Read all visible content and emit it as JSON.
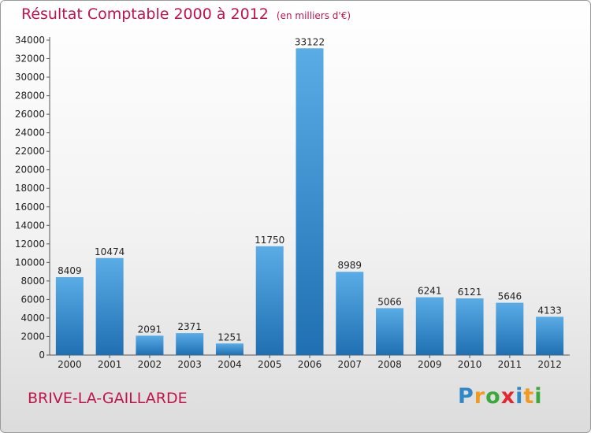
{
  "title": "Résultat Comptable 2000 à 2012",
  "unit": "(en milliers d'€)",
  "city": "BRIVE-LA-GAILLARDE",
  "logo": {
    "letters": [
      "P",
      "r",
      "o",
      "x",
      "i",
      "t",
      "i"
    ],
    "colors": [
      "#2e88c8",
      "#f29a1f",
      "#3aa83a",
      "#e3262f",
      "#2e88c8",
      "#f29a1f",
      "#3aa83a"
    ]
  },
  "colors": {
    "bar_top": "#5aace6",
    "bar_bottom": "#1f6fb2",
    "title": "#c0144c"
  },
  "chart_data": {
    "type": "bar",
    "title": "Résultat Comptable 2000 à 2012",
    "ylabel": "(en milliers d'€)",
    "xlabel": "",
    "categories": [
      "2000",
      "2001",
      "2002",
      "2003",
      "2004",
      "2005",
      "2006",
      "2007",
      "2008",
      "2009",
      "2010",
      "2011",
      "2012"
    ],
    "values": [
      8409,
      10474,
      2091,
      2371,
      1251,
      11750,
      33122,
      8989,
      5066,
      6241,
      6121,
      5646,
      4133
    ],
    "ylim": [
      0,
      34000
    ],
    "yticks": [
      0,
      2000,
      4000,
      6000,
      8000,
      10000,
      12000,
      14000,
      16000,
      18000,
      20000,
      22000,
      24000,
      26000,
      28000,
      30000,
      32000,
      34000
    ],
    "grid": false,
    "legend": "none"
  }
}
